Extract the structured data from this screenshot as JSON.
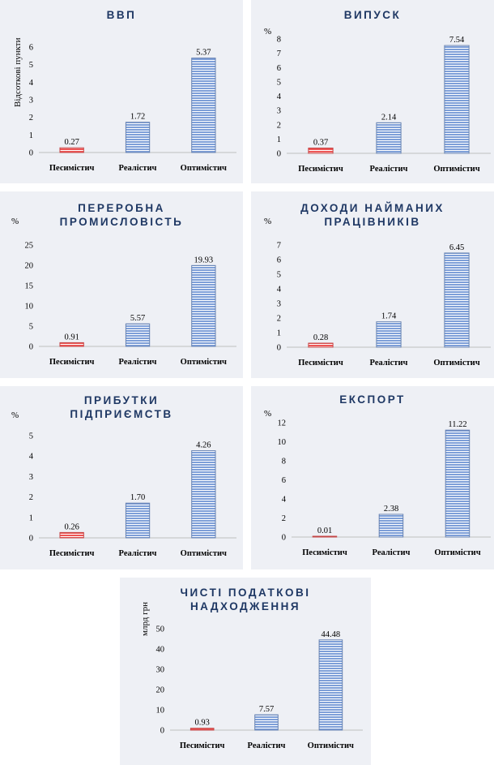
{
  "chart_data": [
    {
      "type": "bar",
      "title": "ВВП",
      "ylabel": "Відсоткові пункти",
      "categories": [
        "Песимістич",
        "Реалістич",
        "Оптимістич"
      ],
      "values": [
        0.27,
        1.72,
        5.37
      ],
      "labels": [
        "0.27",
        "1.72",
        "5.37"
      ],
      "yticks": [
        "0",
        "1",
        "2",
        "3",
        "4",
        "5",
        "6"
      ],
      "ylim": [
        0,
        6
      ],
      "colors": [
        "#ee5555",
        "#7e9fd8",
        "#7e9fd8"
      ]
    },
    {
      "type": "bar",
      "title": "ВИПУСК",
      "ylabel": "%",
      "categories": [
        "Песимістич",
        "Реалістич",
        "Оптимістич"
      ],
      "values": [
        0.37,
        2.14,
        7.54
      ],
      "labels": [
        "0.37",
        "2.14",
        "7.54"
      ],
      "yticks": [
        "0",
        "1",
        "2",
        "3",
        "4",
        "5",
        "6",
        "7",
        "8"
      ],
      "ylim": [
        0,
        8
      ],
      "colors": [
        "#ee5555",
        "#7e9fd8",
        "#7e9fd8"
      ]
    },
    {
      "type": "bar",
      "title_lines": [
        "ПЕРЕРОБНА",
        "ПРОМИСЛОВІСТЬ"
      ],
      "ylabel": "%",
      "categories": [
        "Песимістич",
        "Реалістич",
        "Оптимістич"
      ],
      "values": [
        0.91,
        5.57,
        19.93
      ],
      "labels": [
        "0.91",
        "5.57",
        "19.93"
      ],
      "yticks": [
        "0",
        "5",
        "10",
        "15",
        "20",
        "25"
      ],
      "ylim": [
        0,
        25
      ],
      "colors": [
        "#ee5555",
        "#7e9fd8",
        "#7e9fd8"
      ]
    },
    {
      "type": "bar",
      "title_lines": [
        "ДОХОДИ НАЙМАНИХ",
        "ПРАЦІВНИКІВ"
      ],
      "ylabel": "%",
      "categories": [
        "Песимістич",
        "Реалістич",
        "Оптимістич"
      ],
      "values": [
        0.28,
        1.74,
        6.45
      ],
      "labels": [
        "0.28",
        "1.74",
        "6.45"
      ],
      "yticks": [
        "0",
        "1",
        "2",
        "3",
        "4",
        "5",
        "6",
        "7"
      ],
      "ylim": [
        0,
        7
      ],
      "colors": [
        "#ee5555",
        "#7e9fd8",
        "#7e9fd8"
      ]
    },
    {
      "type": "bar",
      "title_lines": [
        "ПРИБУТКИ",
        "ПІДПРИЄМСТВ"
      ],
      "ylabel": "%",
      "categories": [
        "Песимістич",
        "Реалістич",
        "Оптимістич"
      ],
      "values": [
        0.26,
        1.7,
        4.26
      ],
      "labels": [
        "0.26",
        "1.70",
        "4.26"
      ],
      "yticks": [
        "0",
        "1",
        "2",
        "3",
        "4",
        "5"
      ],
      "ylim": [
        0,
        5
      ],
      "colors": [
        "#ee5555",
        "#7e9fd8",
        "#7e9fd8"
      ]
    },
    {
      "type": "bar",
      "title": "ЕКСПОРТ",
      "ylabel": "%",
      "categories": [
        "Песимістич",
        "Реалістич",
        "Оптимістич"
      ],
      "values": [
        0.01,
        2.38,
        11.22
      ],
      "labels": [
        "0.01",
        "2.38",
        "11.22"
      ],
      "yticks": [
        "0",
        "2",
        "4",
        "6",
        "8",
        "10",
        "12"
      ],
      "ylim": [
        0,
        12
      ],
      "colors": [
        "#ee5555",
        "#7e9fd8",
        "#7e9fd8"
      ]
    },
    {
      "type": "bar",
      "title_lines": [
        "ЧИСТІ ПОДАТКОВІ",
        "НАДХОДЖЕННЯ"
      ],
      "ylabel": "млрд грн",
      "categories": [
        "Песимістич",
        "Реалістич",
        "Оптимістич"
      ],
      "values": [
        0.93,
        7.57,
        44.48
      ],
      "labels": [
        "0.93",
        "7.57",
        "44.48"
      ],
      "yticks": [
        "0",
        "10",
        "20",
        "30",
        "40",
        "50"
      ],
      "ylim": [
        0,
        50
      ],
      "colors": [
        "#ee5555",
        "#7e9fd8",
        "#7e9fd8"
      ]
    }
  ]
}
